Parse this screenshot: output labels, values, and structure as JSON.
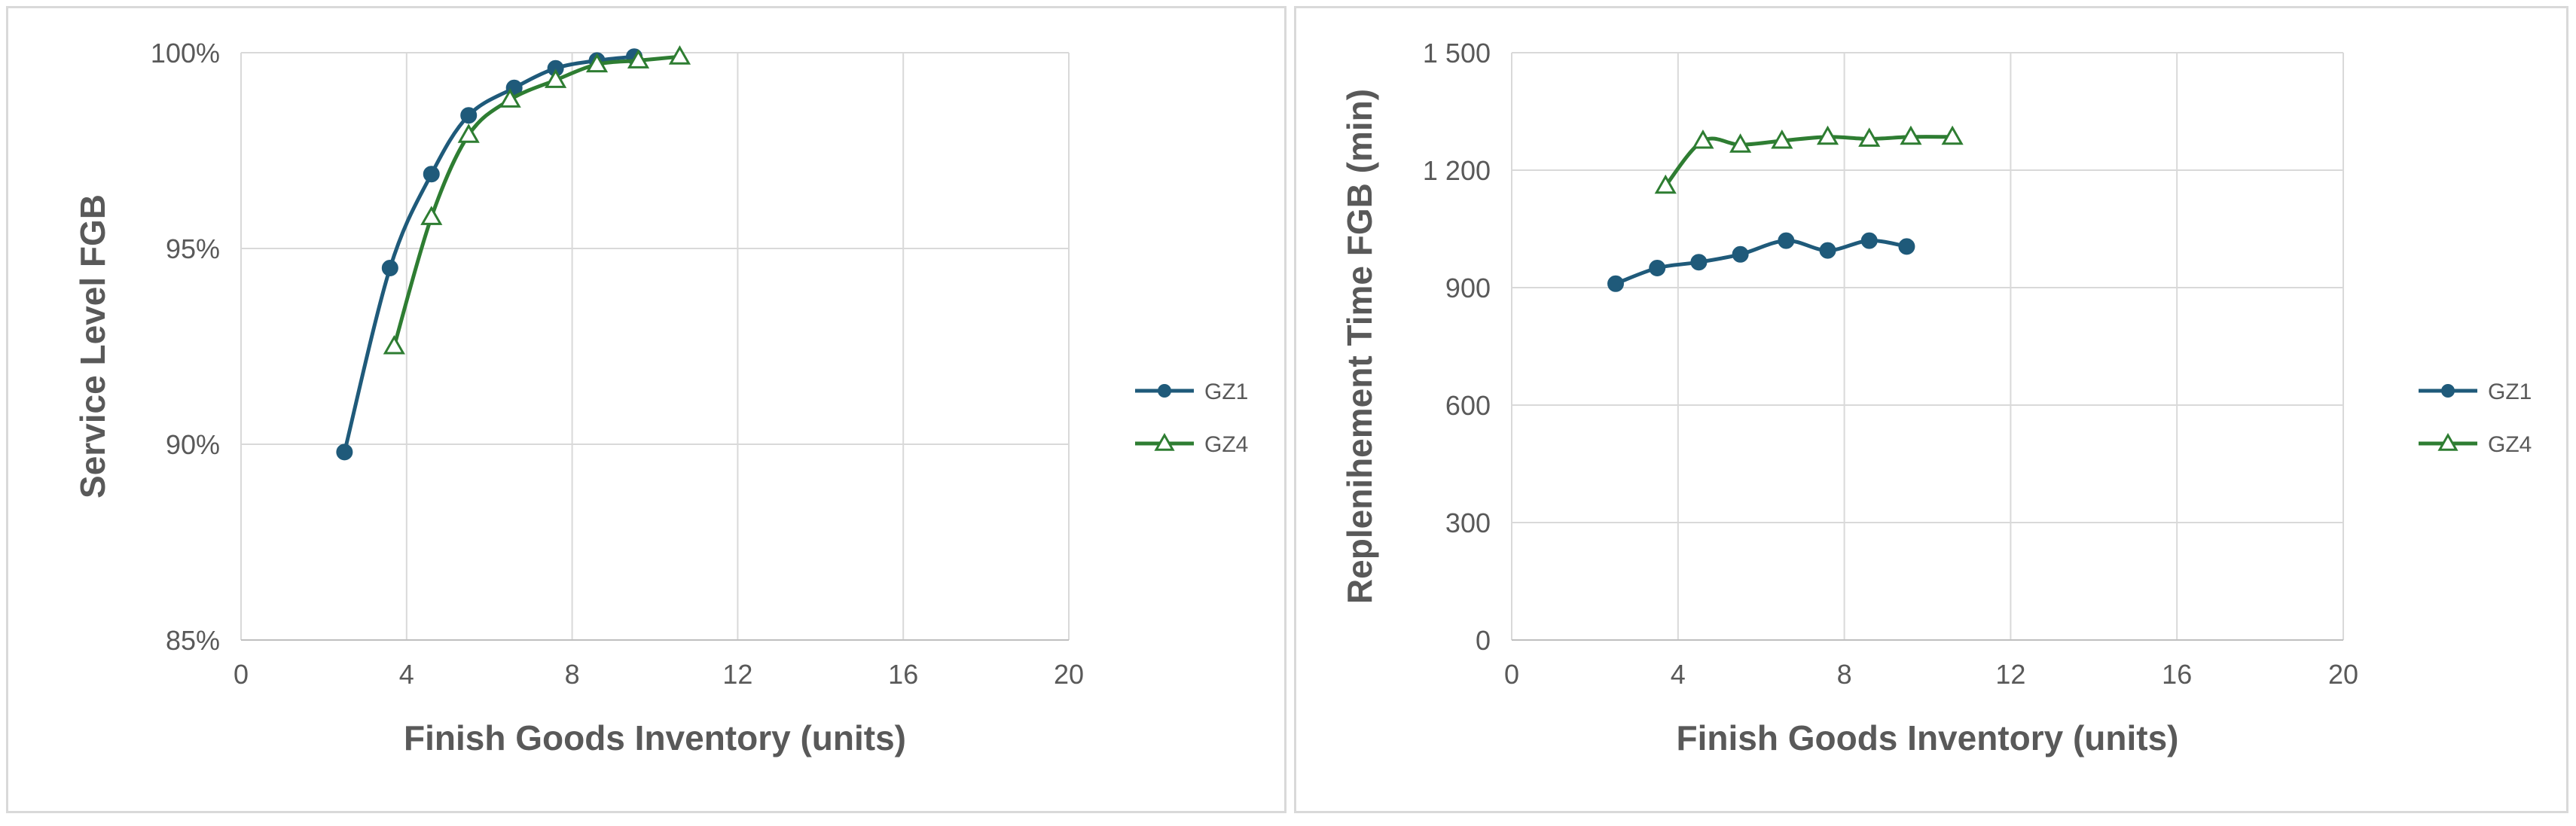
{
  "chart_data": [
    {
      "type": "line",
      "xlabel": "Finish Goods Inventory  (units)",
      "ylabel": "Service Level FGB",
      "xlim": [
        0,
        20
      ],
      "ylim": [
        85,
        100
      ],
      "x_ticks": [
        0,
        4,
        8,
        12,
        16,
        20
      ],
      "y_ticks": [
        85,
        90,
        95,
        100
      ],
      "y_tick_labels": [
        "85%",
        "90%",
        "95%",
        "100%"
      ],
      "grid": true,
      "legend_position": "right",
      "series": [
        {
          "name": "GZ1",
          "marker": "circle",
          "color": "#1f5a7a",
          "x": [
            2.5,
            3.6,
            4.6,
            5.5,
            6.6,
            7.6,
            8.6,
            9.5
          ],
          "y": [
            89.8,
            94.5,
            96.9,
            98.4,
            99.1,
            99.6,
            99.8,
            99.9
          ]
        },
        {
          "name": "GZ4",
          "marker": "triangle",
          "color": "#2e7d32",
          "x": [
            3.7,
            4.6,
            5.5,
            6.5,
            7.6,
            8.6,
            9.6,
            10.6
          ],
          "y": [
            92.5,
            95.8,
            97.9,
            98.8,
            99.3,
            99.7,
            99.8,
            99.9
          ]
        }
      ]
    },
    {
      "type": "line",
      "xlabel": "Finish Goods Inventory  (units)",
      "ylabel": "Replenihement Time FGB (min)",
      "xlim": [
        0,
        20
      ],
      "ylim": [
        0,
        1500
      ],
      "x_ticks": [
        0,
        4,
        8,
        12,
        16,
        20
      ],
      "y_ticks": [
        0,
        300,
        600,
        900,
        1200,
        1500
      ],
      "y_tick_labels": [
        "0",
        "300",
        "600",
        "900",
        "1 200",
        "1 500"
      ],
      "grid": true,
      "legend_position": "right",
      "series": [
        {
          "name": "GZ1",
          "marker": "circle",
          "color": "#1f5a7a",
          "x": [
            2.5,
            3.5,
            4.5,
            5.5,
            6.6,
            7.6,
            8.6,
            9.5
          ],
          "y": [
            910,
            950,
            965,
            985,
            1020,
            995,
            1020,
            1005
          ]
        },
        {
          "name": "GZ4",
          "marker": "triangle",
          "color": "#2e7d32",
          "x": [
            3.7,
            4.6,
            5.5,
            6.5,
            7.6,
            8.6,
            9.6,
            10.6
          ],
          "y": [
            1160,
            1275,
            1265,
            1275,
            1285,
            1280,
            1285,
            1285
          ]
        }
      ]
    }
  ]
}
